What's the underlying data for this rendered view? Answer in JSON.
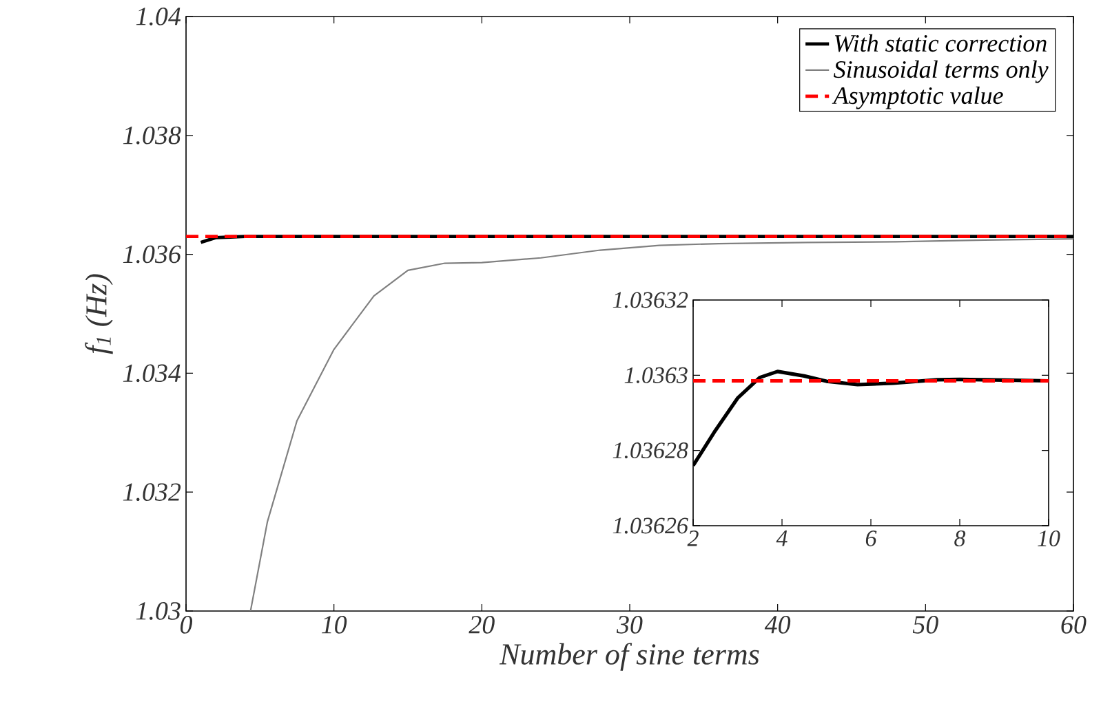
{
  "chart_data": [
    {
      "type": "line",
      "xlabel": "Number of sine terms",
      "ylabel": "f$_{1}$ (Hz)",
      "xlim": [
        0,
        60
      ],
      "ylim": [
        1.03,
        1.04
      ],
      "xticks": [
        0,
        10,
        20,
        30,
        40,
        50,
        60
      ],
      "yticks": [
        1.03,
        1.032,
        1.034,
        1.036,
        1.038,
        1.04
      ],
      "legend": "top right",
      "grid": false,
      "series": [
        {
          "name": "With static correction",
          "color": "#000000",
          "line_style": "solid",
          "x": [
            1,
            2,
            3,
            4,
            10,
            60
          ],
          "values": [
            1.0362,
            1.03628,
            1.03629,
            1.0363,
            1.0363,
            1.0363
          ]
        },
        {
          "name": "Sinusoidal terms only",
          "color": "#808080",
          "line_style": "solid",
          "x": [
            4.36,
            5.5,
            7.5,
            10,
            12.7,
            15,
            17.5,
            20,
            24,
            28,
            32,
            36,
            42,
            48,
            54,
            60
          ],
          "values": [
            1.03,
            1.0315,
            1.0332,
            1.0344,
            1.0353,
            1.03573,
            1.03585,
            1.03586,
            1.03594,
            1.03607,
            1.03615,
            1.03618,
            1.0362,
            1.03621,
            1.03624,
            1.03626
          ]
        },
        {
          "name": "Asymptotic value",
          "color": "#ff0000",
          "line_style": "dashed",
          "x": [
            0,
            60
          ],
          "values": [
            1.0363,
            1.0363
          ]
        }
      ]
    },
    {
      "type": "line",
      "xlim": [
        2,
        10
      ],
      "ylim": [
        1.03626,
        1.03632
      ],
      "xticks": [
        2,
        4,
        6,
        8,
        10
      ],
      "yticks": [
        1.03626,
        1.03628,
        1.0363,
        1.03632
      ],
      "grid": false,
      "series": [
        {
          "color": "#000000",
          "line_style": "solid",
          "x": [
            2,
            2.5,
            3,
            3.5,
            3.9,
            4.5,
            5,
            5.7,
            6.5,
            7.5,
            8,
            9,
            10
          ],
          "values": [
            1.036276,
            1.0362853,
            1.0362939,
            1.0362994,
            1.036301,
            1.0362998,
            1.0362984,
            1.0362975,
            1.0362979,
            1.0362988,
            1.0362989,
            1.0362987,
            1.0362985
          ]
        },
        {
          "color": "#ff0000",
          "line_style": "dashed",
          "x": [
            2,
            10
          ],
          "values": [
            1.0362985,
            1.0362985
          ]
        }
      ]
    }
  ]
}
